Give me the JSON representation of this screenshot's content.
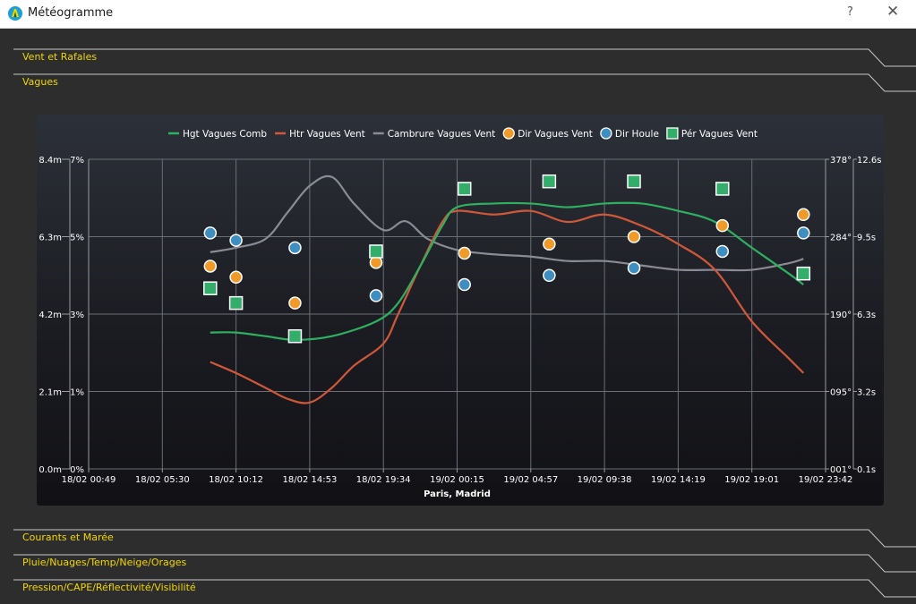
{
  "window": {
    "title": "Météogramme",
    "help_label": "?",
    "close_label": "✕"
  },
  "sections": {
    "vent": "Vent et Rafales",
    "vagues": "Vagues",
    "courants": "Courants et Marée",
    "pluie": "Pluie/Nuages/Temp/Neige/Orages",
    "pression": "Pression/CAPE/Réflectivité/Visibilité"
  },
  "colors": {
    "hgt": "#2fb060",
    "htr": "#d0583a",
    "camb": "#8a8b95",
    "dir_vagues": "#f09a2a",
    "dir_houle": "#3e8ec0",
    "per": "#33ad6a",
    "section_label": "#f2d600"
  },
  "chart_data": {
    "type": "line",
    "xlabel": "Paris, Madrid",
    "x_ticks": [
      "18/02 00:49",
      "18/02 05:30",
      "18/02 10:12",
      "18/02 14:53",
      "18/02 19:34",
      "19/02 00:15",
      "19/02 04:57",
      "19/02 09:38",
      "19/02 14:19",
      "19/02 19:01",
      "19/02 23:42"
    ],
    "x_range": [
      0,
      10
    ],
    "grid": true,
    "legend_position": "top",
    "y_axes": {
      "height_m": {
        "ticks": [
          "0.0m",
          "2.1m",
          "4.2m",
          "6.3m",
          "8.4m"
        ],
        "range": [
          0,
          8.4
        ]
      },
      "steepness_pct": {
        "ticks": [
          "0%",
          "1%",
          "3%",
          "5%",
          "7%"
        ],
        "range": [
          0,
          7
        ]
      },
      "direction_deg": {
        "ticks": [
          "001°",
          "095°",
          "190°",
          "284°",
          "378°"
        ],
        "range": [
          1,
          378
        ]
      },
      "period_s": {
        "ticks": [
          "0.1s",
          "3.2s",
          "6.3s",
          "9.5s",
          "12.6s"
        ],
        "range": [
          0.1,
          12.6
        ]
      }
    },
    "series": [
      {
        "name": "Hgt Vagues Comb",
        "kind": "line",
        "axis": "height_m",
        "x": [
          1.65,
          2.0,
          2.4,
          2.8,
          3.3,
          3.9,
          4.2,
          4.5,
          4.8,
          5.0,
          5.5,
          6.0,
          6.5,
          7.0,
          7.5,
          8.0,
          8.5,
          9.0,
          9.5,
          9.7
        ],
        "y": [
          3.7,
          3.7,
          3.6,
          3.5,
          3.6,
          4.0,
          4.5,
          5.5,
          6.6,
          7.1,
          7.2,
          7.2,
          7.1,
          7.2,
          7.2,
          7.0,
          6.7,
          6.0,
          5.3,
          5.0
        ]
      },
      {
        "name": "Htr Vagues Vent",
        "kind": "line",
        "axis": "height_m",
        "x": [
          1.65,
          2.0,
          2.4,
          2.7,
          3.0,
          3.3,
          3.6,
          4.0,
          4.2,
          4.5,
          4.8,
          5.0,
          5.5,
          6.0,
          6.5,
          7.0,
          7.5,
          8.0,
          8.5,
          9.0,
          9.5,
          9.7
        ],
        "y": [
          2.9,
          2.6,
          2.2,
          1.9,
          1.8,
          2.2,
          2.8,
          3.4,
          4.2,
          5.5,
          6.7,
          7.0,
          6.9,
          7.0,
          6.7,
          6.9,
          6.6,
          6.1,
          5.4,
          4.0,
          3.0,
          2.6
        ]
      },
      {
        "name": "Cambrure Vagues Vent",
        "kind": "line",
        "axis": "steepness_pct",
        "x": [
          1.65,
          2.0,
          2.4,
          2.7,
          3.0,
          3.3,
          3.6,
          4.0,
          4.3,
          4.6,
          5.0,
          5.5,
          6.0,
          6.5,
          7.0,
          7.5,
          8.0,
          8.5,
          9.0,
          9.5,
          9.7
        ],
        "y": [
          4.9,
          5.0,
          5.2,
          5.8,
          6.4,
          6.6,
          6.0,
          5.4,
          5.6,
          5.2,
          4.95,
          4.85,
          4.8,
          4.7,
          4.7,
          4.6,
          4.5,
          4.5,
          4.5,
          4.65,
          4.75
        ]
      },
      {
        "name": "Dir Vagues Vent",
        "kind": "points",
        "marker": "circle",
        "axis": "height_m",
        "x": [
          1.65,
          2.0,
          2.8,
          3.9,
          5.1,
          6.25,
          7.4,
          8.6,
          9.7
        ],
        "y": [
          5.5,
          5.2,
          4.5,
          5.6,
          5.85,
          6.1,
          6.3,
          6.6,
          6.9
        ]
      },
      {
        "name": "Dir Houle",
        "kind": "points",
        "marker": "circle",
        "axis": "height_m",
        "x": [
          1.65,
          2.0,
          2.8,
          3.9,
          5.1,
          6.25,
          7.4,
          8.6,
          9.7
        ],
        "y": [
          6.4,
          6.2,
          6.0,
          4.7,
          5.0,
          5.25,
          5.45,
          5.9,
          6.4
        ]
      },
      {
        "name": "Pér Vagues Vent",
        "kind": "points",
        "marker": "square",
        "axis": "height_m",
        "x": [
          1.65,
          2.0,
          2.8,
          3.9,
          5.1,
          6.25,
          7.4,
          8.6,
          9.7
        ],
        "y": [
          4.9,
          4.5,
          3.6,
          5.9,
          7.6,
          7.8,
          7.8,
          7.6,
          5.3
        ]
      }
    ]
  }
}
